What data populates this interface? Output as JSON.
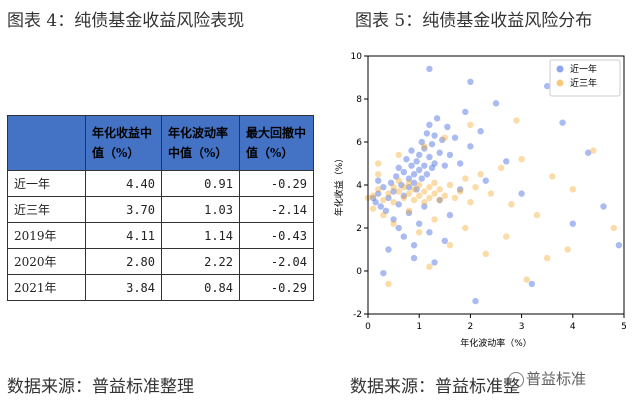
{
  "left_title": "图表 4：纯债基金收益风险表现",
  "right_title": "图表 5：纯债基金收益风险分布",
  "left_source": "数据来源：普益标准整理",
  "right_source": "数据来源：普益标准整",
  "watermark": "普益标准",
  "table": {
    "headers": [
      "",
      "年化收益中值（%）",
      "年化波动率中值（%）",
      "最大回撤中值（%）"
    ],
    "rows": [
      {
        "label": "近一年",
        "values": [
          "4.40",
          "0.91",
          "-0.29"
        ]
      },
      {
        "label": "近三年",
        "values": [
          "3.70",
          "1.03",
          "-2.14"
        ]
      },
      {
        "label": "2019年",
        "values": [
          "4.11",
          "1.14",
          "-0.43"
        ]
      },
      {
        "label": "2020年",
        "values": [
          "2.80",
          "2.22",
          "-2.04"
        ]
      },
      {
        "label": "2021年",
        "values": [
          "3.84",
          "0.84",
          "-0.29"
        ]
      }
    ],
    "header_color": "#4472c4"
  },
  "chart_data": {
    "type": "scatter",
    "xlabel": "年化波动率（%）",
    "ylabel": "年化收益（%）",
    "xlim": [
      0,
      5
    ],
    "ylim": [
      -2,
      10
    ],
    "xticks": [
      "0",
      "1",
      "2",
      "3",
      "4",
      "5"
    ],
    "yticks": [
      "-2",
      "0",
      "2",
      "4",
      "6",
      "8",
      "10"
    ],
    "grid": false,
    "legend_position": "top-right",
    "series": [
      {
        "name": "近一年",
        "color": "#4169e1",
        "points": [
          [
            0.15,
            3.2
          ],
          [
            0.2,
            3.6
          ],
          [
            0.25,
            3.0
          ],
          [
            0.3,
            3.9
          ],
          [
            0.35,
            2.8
          ],
          [
            0.4,
            3.4
          ],
          [
            0.45,
            4.1
          ],
          [
            0.5,
            3.7
          ],
          [
            0.55,
            4.4
          ],
          [
            0.6,
            3.1
          ],
          [
            0.6,
            4.8
          ],
          [
            0.65,
            4.0
          ],
          [
            0.7,
            4.6
          ],
          [
            0.7,
            3.5
          ],
          [
            0.75,
            5.2
          ],
          [
            0.8,
            4.3
          ],
          [
            0.8,
            3.9
          ],
          [
            0.85,
            4.9
          ],
          [
            0.85,
            5.6
          ],
          [
            0.9,
            4.5
          ],
          [
            0.9,
            4.1
          ],
          [
            0.95,
            5.1
          ],
          [
            0.95,
            3.8
          ],
          [
            1.0,
            4.7
          ],
          [
            1.0,
            5.4
          ],
          [
            1.05,
            6.0
          ],
          [
            1.05,
            4.3
          ],
          [
            1.1,
            4.9
          ],
          [
            1.1,
            5.7
          ],
          [
            1.15,
            6.4
          ],
          [
            1.15,
            4.5
          ],
          [
            1.2,
            5.3
          ],
          [
            1.2,
            6.8
          ],
          [
            1.25,
            4.8
          ],
          [
            1.25,
            5.9
          ],
          [
            1.3,
            6.3
          ],
          [
            1.3,
            5.0
          ],
          [
            1.35,
            7.1
          ],
          [
            1.4,
            5.5
          ],
          [
            1.45,
            6.1
          ],
          [
            1.5,
            4.9
          ],
          [
            1.55,
            6.7
          ],
          [
            1.6,
            5.4
          ],
          [
            1.7,
            6.2
          ],
          [
            1.8,
            5.0
          ],
          [
            1.9,
            7.4
          ],
          [
            2.0,
            5.8
          ],
          [
            2.2,
            6.5
          ],
          [
            0.5,
            2.4
          ],
          [
            0.6,
            2.0
          ],
          [
            0.7,
            1.6
          ],
          [
            0.8,
            2.7
          ],
          [
            0.9,
            1.2
          ],
          [
            1.0,
            2.2
          ],
          [
            1.1,
            3.0
          ],
          [
            1.2,
            1.8
          ],
          [
            1.4,
            3.3
          ],
          [
            1.6,
            2.6
          ],
          [
            1.8,
            3.8
          ],
          [
            0.4,
            1.0
          ],
          [
            0.3,
            -0.1
          ],
          [
            0.9,
            0.6
          ],
          [
            1.3,
            0.4
          ],
          [
            1.5,
            1.4
          ],
          [
            2.3,
            4.2
          ],
          [
            2.5,
            7.8
          ],
          [
            2.7,
            5.1
          ],
          [
            3.0,
            3.6
          ],
          [
            3.5,
            8.6
          ],
          [
            4.0,
            2.2
          ],
          [
            4.3,
            5.5
          ],
          [
            3.8,
            6.9
          ],
          [
            2.1,
            -1.4
          ],
          [
            1.2,
            9.4
          ],
          [
            2.0,
            8.8
          ],
          [
            3.2,
            -0.6
          ],
          [
            4.6,
            3.0
          ],
          [
            4.9,
            1.2
          ],
          [
            0.1,
            3.4
          ],
          [
            0.2,
            4.2
          ]
        ]
      },
      {
        "name": "近三年",
        "color": "#f5a623",
        "points": [
          [
            0.1,
            3.5
          ],
          [
            0.2,
            3.8
          ],
          [
            0.3,
            3.3
          ],
          [
            0.4,
            3.6
          ],
          [
            0.5,
            3.9
          ],
          [
            0.5,
            3.2
          ],
          [
            0.6,
            3.7
          ],
          [
            0.6,
            4.2
          ],
          [
            0.7,
            3.4
          ],
          [
            0.7,
            3.9
          ],
          [
            0.8,
            3.6
          ],
          [
            0.8,
            4.1
          ],
          [
            0.9,
            3.3
          ],
          [
            0.9,
            3.8
          ],
          [
            1.0,
            3.5
          ],
          [
            1.0,
            4.0
          ],
          [
            1.1,
            3.7
          ],
          [
            1.1,
            3.2
          ],
          [
            1.2,
            3.9
          ],
          [
            1.2,
            3.4
          ],
          [
            1.3,
            3.6
          ],
          [
            1.3,
            4.1
          ],
          [
            1.4,
            3.3
          ],
          [
            1.4,
            3.8
          ],
          [
            1.5,
            3.5
          ],
          [
            1.6,
            4.0
          ],
          [
            1.7,
            3.4
          ],
          [
            1.8,
            3.7
          ],
          [
            1.9,
            4.3
          ],
          [
            2.0,
            3.2
          ],
          [
            2.1,
            3.9
          ],
          [
            2.2,
            4.5
          ],
          [
            2.4,
            3.6
          ],
          [
            2.6,
            4.8
          ],
          [
            2.8,
            3.1
          ],
          [
            3.0,
            5.2
          ],
          [
            3.3,
            2.6
          ],
          [
            3.6,
            4.4
          ],
          [
            4.0,
            3.8
          ],
          [
            4.4,
            5.6
          ],
          [
            0.3,
            2.6
          ],
          [
            0.5,
            2.2
          ],
          [
            0.8,
            2.8
          ],
          [
            1.0,
            1.8
          ],
          [
            1.3,
            2.4
          ],
          [
            1.6,
            1.2
          ],
          [
            1.9,
            2.0
          ],
          [
            2.3,
            0.8
          ],
          [
            2.7,
            1.6
          ],
          [
            3.1,
            -0.4
          ],
          [
            3.5,
            0.6
          ],
          [
            0.2,
            5.0
          ],
          [
            0.6,
            5.4
          ],
          [
            1.1,
            5.8
          ],
          [
            1.5,
            6.2
          ],
          [
            2.0,
            6.8
          ],
          [
            0.0,
            3.4
          ],
          [
            0.1,
            2.9
          ],
          [
            0.2,
            4.5
          ],
          [
            4.8,
            2.0
          ],
          [
            0.4,
            -0.6
          ],
          [
            1.2,
            0.2
          ],
          [
            2.9,
            7.0
          ],
          [
            3.9,
            1.0
          ]
        ]
      }
    ]
  }
}
